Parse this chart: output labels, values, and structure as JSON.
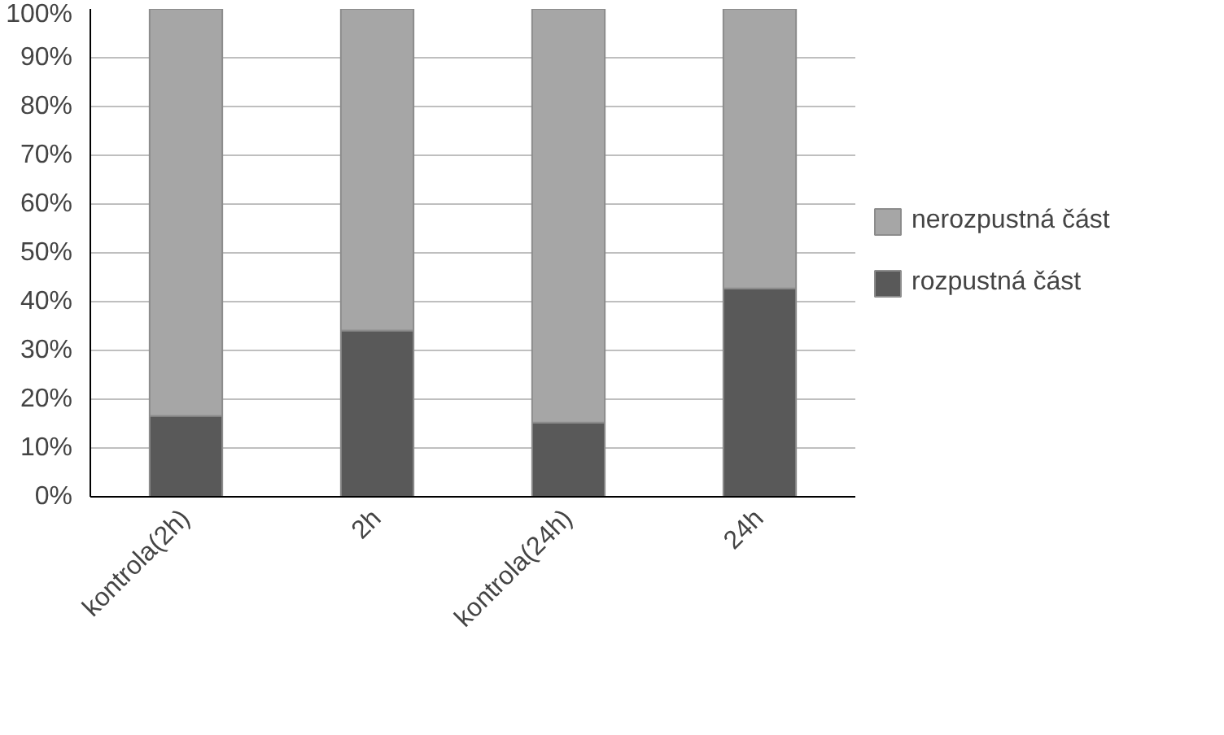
{
  "chart_data": {
    "type": "bar",
    "stacked": true,
    "categories": [
      "kontrola(2h)",
      "2h",
      "kontrola(24h)",
      "24h"
    ],
    "series": [
      {
        "name": "rozpustná část",
        "color": "#595959",
        "values": [
          16.6,
          34.1,
          15.2,
          42.7
        ]
      },
      {
        "name": "nerozpustná část",
        "color": "#a6a6a6",
        "values": [
          83.4,
          65.9,
          84.8,
          57.3
        ]
      }
    ],
    "ylim": [
      0,
      100
    ],
    "yticks": [
      {
        "value": 0,
        "label": "0%"
      },
      {
        "value": 10,
        "label": "10%"
      },
      {
        "value": 20,
        "label": "20%"
      },
      {
        "value": 30,
        "label": "30%"
      },
      {
        "value": 40,
        "label": "40%"
      },
      {
        "value": 50,
        "label": "50%"
      },
      {
        "value": 60,
        "label": "60%"
      },
      {
        "value": 70,
        "label": "70%"
      },
      {
        "value": 80,
        "label": "80%"
      },
      {
        "value": 90,
        "label": "90%"
      },
      {
        "value": 100,
        "label": "100%"
      }
    ],
    "grid": "y",
    "legend": "right"
  }
}
